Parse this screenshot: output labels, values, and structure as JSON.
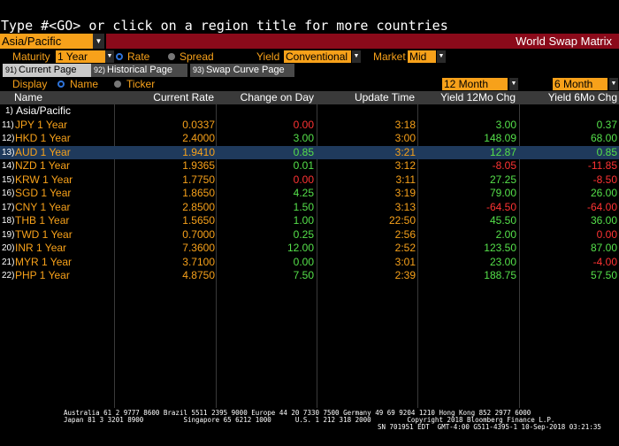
{
  "command_line": "Type #<GO> or click on a region title for more countries",
  "region": {
    "value": "Asia/Pacific"
  },
  "title": "World Swap Matrix",
  "controls": {
    "maturity_label": "Maturity",
    "maturity_value": "1 Year",
    "rate_label": "Rate",
    "spread_label": "Spread",
    "yield_label": "Yield",
    "yield_value": "Conventional",
    "market_label": "Market",
    "market_value": "Mid"
  },
  "tabs": [
    {
      "num": "91)",
      "label": "Current Page"
    },
    {
      "num": "92)",
      "label": "Historical Page"
    },
    {
      "num": "93)",
      "label": "Swap Curve Page"
    }
  ],
  "display": {
    "label": "Display",
    "name_label": "Name",
    "ticker_label": "Ticker",
    "period1": "12 Month",
    "period2": "6 Month"
  },
  "columns": [
    "Name",
    "Current Rate",
    "Change on Day",
    "Update Time",
    "Yield 12Mo Chg",
    "Yield 6Mo Chg"
  ],
  "group": {
    "idx": "1)",
    "name": "Asia/Pacific"
  },
  "rows": [
    {
      "idx": "11)",
      "name": "JPY 1 Year",
      "rate": "0.0337",
      "change": "0.00",
      "time": "3:18",
      "y12": "3.00",
      "y6": "0.37",
      "ch_color": "#ff3333",
      "y12_color": "#55e04a",
      "y6_color": "#55e04a"
    },
    {
      "idx": "12)",
      "name": "HKD 1 Year",
      "rate": "2.4000",
      "change": "3.00",
      "time": "3:00",
      "y12": "148.09",
      "y6": "68.00",
      "ch_color": "#55e04a",
      "y12_color": "#55e04a",
      "y6_color": "#55e04a"
    },
    {
      "idx": "13)",
      "name": "AUD 1 Year",
      "rate": "1.9410",
      "change": "0.85",
      "time": "3:21",
      "y12": "12.87",
      "y6": "0.85",
      "ch_color": "#55e04a",
      "y12_color": "#55e04a",
      "y6_color": "#55e04a"
    },
    {
      "idx": "14)",
      "name": "NZD 1 Year",
      "rate": "1.9365",
      "change": "0.01",
      "time": "3:12",
      "y12": "-8.05",
      "y6": "-11.85",
      "ch_color": "#55e04a",
      "y12_color": "#ff3333",
      "y6_color": "#ff3333"
    },
    {
      "idx": "15)",
      "name": "KRW 1 Year",
      "rate": "1.7750",
      "change": "0.00",
      "time": "3:11",
      "y12": "27.25",
      "y6": "-8.50",
      "ch_color": "#ff3333",
      "y12_color": "#55e04a",
      "y6_color": "#ff3333"
    },
    {
      "idx": "16)",
      "name": "SGD 1 Year",
      "rate": "1.8650",
      "change": "4.25",
      "time": "3:19",
      "y12": "79.00",
      "y6": "26.00",
      "ch_color": "#55e04a",
      "y12_color": "#55e04a",
      "y6_color": "#55e04a"
    },
    {
      "idx": "17)",
      "name": "CNY 1 Year",
      "rate": "2.8500",
      "change": "1.50",
      "time": "3:13",
      "y12": "-64.50",
      "y6": "-64.00",
      "ch_color": "#55e04a",
      "y12_color": "#ff3333",
      "y6_color": "#ff3333"
    },
    {
      "idx": "18)",
      "name": "THB 1 Year",
      "rate": "1.5650",
      "change": "1.00",
      "time": "22:50",
      "y12": "45.50",
      "y6": "36.00",
      "ch_color": "#55e04a",
      "y12_color": "#55e04a",
      "y6_color": "#55e04a"
    },
    {
      "idx": "19)",
      "name": "TWD 1 Year",
      "rate": "0.7000",
      "change": "0.25",
      "time": "2:56",
      "y12": "2.00",
      "y6": "0.00",
      "ch_color": "#55e04a",
      "y12_color": "#55e04a",
      "y6_color": "#ff3333"
    },
    {
      "idx": "20)",
      "name": "INR 1 Year",
      "rate": "7.3600",
      "change": "12.00",
      "time": "2:52",
      "y12": "123.50",
      "y6": "87.00",
      "ch_color": "#55e04a",
      "y12_color": "#55e04a",
      "y6_color": "#55e04a"
    },
    {
      "idx": "21)",
      "name": "MYR 1 Year",
      "rate": "3.7100",
      "change": "0.00",
      "time": "3:01",
      "y12": "23.00",
      "y6": "-4.00",
      "ch_color": "#55e04a",
      "y12_color": "#55e04a",
      "y6_color": "#ff3333"
    },
    {
      "idx": "22)",
      "name": "PHP 1 Year",
      "rate": "4.8750",
      "change": "7.50",
      "time": "2:39",
      "y12": "188.75",
      "y6": "57.50",
      "ch_color": "#55e04a",
      "y12_color": "#55e04a",
      "y6_color": "#55e04a"
    }
  ],
  "footer": {
    "line1": "Australia 61 2 9777 8600 Brazil 5511 2395 9000 Europe 44 20 7330 7500 Germany 49 69 9204 1210 Hong Kong 852 2977 6000",
    "line2": "Japan 81 3 3201 8900          Singapore 65 6212 1000      U.S. 1 212 318 2000         Copyright 2018 Bloomberg Finance L.P.",
    "line3": "SN 701951 EDT  GMT-4:00 G511-4395-1 10-Sep-2018 03:21:35"
  },
  "colors": {
    "orange": "#f7a11a",
    "title_red": "#8b0a1a",
    "green": "#55e04a",
    "red": "#ff3333",
    "selected_row": "#1f3a5c"
  }
}
